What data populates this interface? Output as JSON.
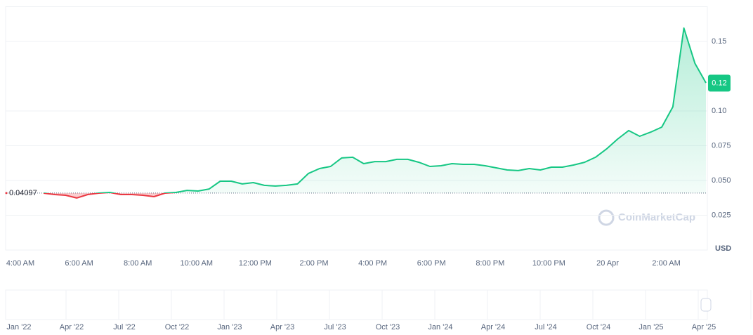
{
  "chart_data": {
    "type": "line",
    "x_labels": [
      "4:00 AM",
      "6:00 AM",
      "8:00 AM",
      "10:00 AM",
      "12:00 PM",
      "2:00 PM",
      "4:00 PM",
      "6:00 PM",
      "8:00 PM",
      "10:00 PM",
      "20 Apr",
      "2:00 AM"
    ],
    "series": [
      {
        "name": "Price",
        "color": "#16c784",
        "below_color": "#ea3943",
        "values": [
          0.0409,
          0.0399,
          0.0394,
          0.0374,
          0.0399,
          0.0409,
          0.0414,
          0.0399,
          0.0399,
          0.0394,
          0.0384,
          0.0409,
          0.0414,
          0.0429,
          0.0424,
          0.0439,
          0.0495,
          0.0495,
          0.0475,
          0.0485,
          0.0465,
          0.046,
          0.0465,
          0.0475,
          0.0551,
          0.0586,
          0.0601,
          0.0662,
          0.0667,
          0.0621,
          0.0636,
          0.0636,
          0.0652,
          0.0652,
          0.0631,
          0.0601,
          0.0606,
          0.0621,
          0.0616,
          0.0616,
          0.0606,
          0.0591,
          0.0576,
          0.0571,
          0.0586,
          0.0576,
          0.0596,
          0.0596,
          0.0611,
          0.0631,
          0.0667,
          0.0727,
          0.0798,
          0.0859,
          0.0818,
          0.0848,
          0.0884,
          0.103,
          0.1596,
          0.1343,
          0.1202
        ]
      }
    ],
    "baseline": {
      "value": 0.04097,
      "label": "0.04097"
    },
    "current_price": {
      "value": 0.12,
      "label": "0.12"
    },
    "ylim": [
      0,
      0.175
    ],
    "yticks": [
      0.025,
      {
        "value": 0.05,
        "label": "0.050"
      },
      0.075,
      {
        "value": 0.1,
        "label": "0.10"
      },
      0.15
    ],
    "grid": true,
    "currency": "USD",
    "watermark": "CoinMarketCap",
    "navigator_labels": [
      "Jan '22",
      "Apr '22",
      "Jul '22",
      "Oct '22",
      "Jan '23",
      "Apr '23",
      "Jul '23",
      "Oct '23",
      "Jan '24",
      "Apr '24",
      "Jul '24",
      "Oct '24",
      "Jan '25",
      "Apr '25"
    ]
  }
}
